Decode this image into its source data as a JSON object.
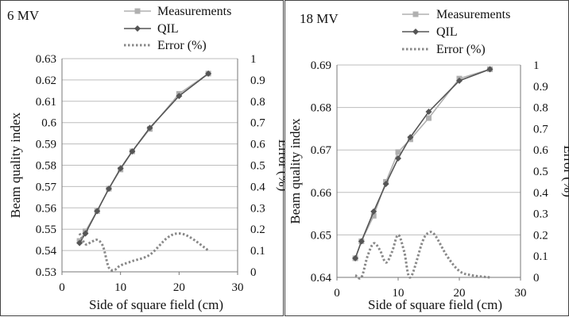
{
  "chart_data": [
    {
      "type": "line",
      "title": "6 MV",
      "xlabel": "Side of square field (cm)",
      "ylabel": "Beam quality index",
      "y2label": "Error (%)",
      "xlim": [
        0,
        30
      ],
      "ylim": [
        0.53,
        0.63
      ],
      "y2lim": [
        0,
        1
      ],
      "xticks": [
        "0",
        "10",
        "20",
        "30"
      ],
      "yticks": [
        "0.53",
        "0.54",
        "0.55",
        "0.56",
        "0.57",
        "0.58",
        "0.59",
        "0.6",
        "0.61",
        "0.62",
        "0.63"
      ],
      "y2ticks": [
        "0",
        "0.1",
        "0.2",
        "0.3",
        "0.4",
        "0.5",
        "0.6",
        "0.7",
        "0.8",
        "0.9",
        "1"
      ],
      "legend": [
        "Measurements",
        "QIL",
        "Error (%)"
      ],
      "legend_position": "top",
      "grid": "horizontal",
      "series": [
        {
          "name": "Measurements",
          "axis": "left",
          "color": "#b0b0b0",
          "marker": "square",
          "x": [
            3,
            4,
            6,
            8,
            10,
            12,
            15,
            20,
            25
          ],
          "y": [
            0.5445,
            0.549,
            0.5585,
            0.569,
            0.578,
            0.5865,
            0.597,
            0.6135,
            0.623
          ]
        },
        {
          "name": "QIL",
          "axis": "left",
          "color": "#555555",
          "marker": "diamond",
          "x": [
            3,
            4,
            6,
            8,
            10,
            12,
            15,
            20,
            25
          ],
          "y": [
            0.5435,
            0.548,
            0.5585,
            0.569,
            0.5785,
            0.5865,
            0.5975,
            0.6125,
            0.623
          ]
        },
        {
          "name": "Error (%)",
          "axis": "right",
          "color": "#888888",
          "style": "dotted",
          "x": [
            3,
            4,
            5,
            6,
            7,
            8,
            9,
            10,
            12,
            15,
            18,
            20,
            22,
            25
          ],
          "y": [
            0.18,
            0.13,
            0.14,
            0.15,
            0.12,
            0.02,
            0.01,
            0.03,
            0.05,
            0.08,
            0.16,
            0.18,
            0.16,
            0.1
          ]
        }
      ]
    },
    {
      "type": "line",
      "title": "18 MV",
      "xlabel": "Side of square field (cm)",
      "ylabel": "Beam quality index",
      "y2label": "Error (%)",
      "xlim": [
        0,
        30
      ],
      "ylim": [
        0.64,
        0.69
      ],
      "y2lim": [
        0,
        1
      ],
      "xticks": [
        "0",
        "10",
        "20",
        "30"
      ],
      "yticks": [
        "0.64",
        "0.65",
        "0.66",
        "0.67",
        "0.68",
        "0.69"
      ],
      "y2ticks": [
        "0",
        "0.1",
        "0.2",
        "0.3",
        "0.4",
        "0.5",
        "0.6",
        "0.7",
        "0.8",
        "0.9",
        "1"
      ],
      "legend": [
        "Measurements",
        "QIL",
        "Error (%)"
      ],
      "legend_position": "top",
      "grid": "horizontal",
      "series": [
        {
          "name": "Measurements",
          "axis": "left",
          "color": "#b0b0b0",
          "marker": "square",
          "x": [
            3,
            4,
            6,
            8,
            10,
            12,
            15,
            20,
            25
          ],
          "y": [
            0.6445,
            0.6485,
            0.6545,
            0.6625,
            0.6695,
            0.6725,
            0.6775,
            0.6868,
            0.689
          ]
        },
        {
          "name": "QIL",
          "axis": "left",
          "color": "#555555",
          "marker": "diamond",
          "x": [
            3,
            4,
            6,
            8,
            10,
            12,
            15,
            20,
            25
          ],
          "y": [
            0.6445,
            0.6485,
            0.6555,
            0.662,
            0.668,
            0.673,
            0.679,
            0.6863,
            0.689
          ]
        },
        {
          "name": "Error (%)",
          "axis": "right",
          "color": "#888888",
          "style": "dotted",
          "x": [
            3,
            4,
            5,
            6,
            7,
            8,
            9,
            10,
            11,
            12,
            14,
            15,
            16,
            18,
            20,
            22,
            25
          ],
          "y": [
            0.01,
            0.0,
            0.1,
            0.16,
            0.13,
            0.07,
            0.12,
            0.2,
            0.12,
            0.0,
            0.17,
            0.21,
            0.2,
            0.1,
            0.03,
            0.01,
            0.0
          ]
        }
      ]
    }
  ]
}
